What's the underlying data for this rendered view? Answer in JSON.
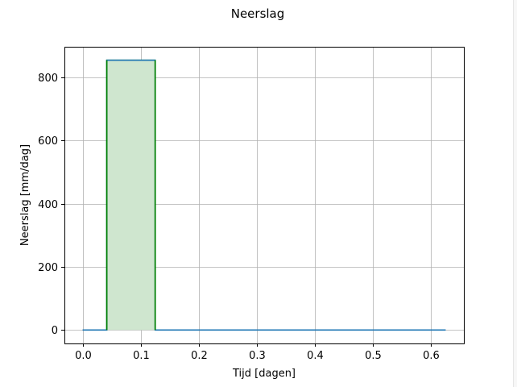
{
  "chart_data": {
    "type": "line",
    "title": "Neerslag",
    "xlabel": "Tijd [dagen]",
    "ylabel": "Neerslag [mm/dag]",
    "xlim": [
      -0.03125,
      0.65625
    ],
    "ylim": [
      -42.7,
      896.7
    ],
    "xticks": [
      0.0,
      0.1,
      0.2,
      0.3,
      0.4,
      0.5,
      0.6
    ],
    "xtick_labels": [
      "0.0",
      "0.1",
      "0.2",
      "0.3",
      "0.4",
      "0.5",
      "0.6"
    ],
    "yticks": [
      0,
      200,
      400,
      600,
      800
    ],
    "ytick_labels": [
      "0",
      "200",
      "400",
      "600",
      "800"
    ],
    "grid": true,
    "series": [
      {
        "kind": "step-line",
        "color": "#1f77b4",
        "x": [
          0.0,
          0.0417,
          0.0417,
          0.125,
          0.125,
          0.625
        ],
        "y": [
          0,
          0,
          854,
          854,
          0,
          0
        ]
      },
      {
        "kind": "filled-block",
        "color": "#008000",
        "fill": "#cfe6cf",
        "x": [
          0.0417,
          0.125
        ],
        "y": 854
      }
    ]
  }
}
